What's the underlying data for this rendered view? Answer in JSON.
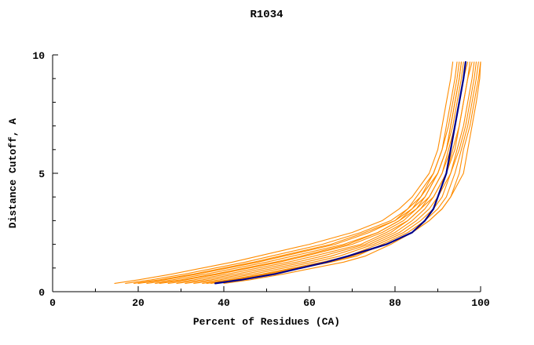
{
  "chart_data": {
    "type": "line",
    "title": "R1034",
    "xlabel": "Percent of Residues (CA)",
    "ylabel": "Distance Cutoff, A",
    "xlim": [
      0,
      100
    ],
    "ylim": [
      0,
      10
    ],
    "xticks": [
      0,
      20,
      40,
      60,
      80,
      100
    ],
    "yticks": [
      0,
      5,
      10
    ],
    "y_minor_ticks": [
      1,
      2,
      3,
      4,
      6,
      7,
      8,
      9
    ],
    "grid": false,
    "legend": "none",
    "colors": {
      "model": "#ff8c00",
      "highlight": "#00008b",
      "axis": "#000000",
      "background": "#ffffff"
    },
    "cutoffs": [
      0.35,
      0.5,
      0.75,
      1.0,
      1.25,
      1.5,
      2.0,
      2.5,
      3.0,
      3.5,
      4.0,
      5.0,
      6.0,
      7.0,
      8.0,
      9.0,
      9.7
    ],
    "series": [
      {
        "role": "model",
        "percents": [
          14.5,
          20,
          28,
          35,
          42,
          48,
          60,
          70,
          77,
          81,
          84,
          88,
          90,
          91,
          92,
          93,
          93.5
        ]
      },
      {
        "role": "model",
        "percents": [
          17,
          23,
          31,
          38,
          45,
          51,
          63,
          72,
          79,
          83,
          85,
          89,
          91,
          92,
          93,
          94,
          94.5
        ]
      },
      {
        "role": "model",
        "percents": [
          19,
          25,
          33,
          40,
          47,
          53,
          65,
          73,
          80,
          83,
          86,
          90,
          92,
          93,
          94,
          95,
          95.5
        ]
      },
      {
        "role": "model",
        "percents": [
          20,
          26,
          34,
          41,
          48,
          54,
          66,
          74,
          80,
          84,
          86,
          89,
          91,
          92.5,
          93.5,
          94.5,
          95
        ]
      },
      {
        "role": "model",
        "percents": [
          22,
          28,
          36,
          43,
          50,
          56,
          68,
          76,
          81,
          84,
          87,
          90,
          92,
          93,
          94,
          95,
          95.5
        ]
      },
      {
        "role": "model",
        "percents": [
          24,
          30,
          38,
          45,
          52,
          58,
          69,
          76,
          81,
          85,
          87,
          90,
          92,
          93.5,
          94.5,
          95.5,
          96
        ]
      },
      {
        "role": "model",
        "percents": [
          25,
          31,
          39,
          46,
          53,
          59,
          70,
          77,
          82,
          85,
          88,
          91,
          92.5,
          94,
          95,
          96,
          96.5
        ]
      },
      {
        "role": "model",
        "percents": [
          27,
          33,
          41,
          48,
          55,
          61,
          72,
          78,
          83,
          86,
          88,
          91,
          93,
          94,
          95,
          96,
          97
        ]
      },
      {
        "role": "model",
        "percents": [
          29,
          35,
          43,
          50,
          57,
          63,
          73,
          79,
          83,
          86,
          89,
          92,
          93.5,
          95,
          96,
          97,
          97.5
        ]
      },
      {
        "role": "model",
        "percents": [
          31,
          37,
          45,
          52,
          59,
          65,
          74,
          80,
          84,
          87,
          89,
          92,
          94,
          95,
          96,
          97,
          98
        ]
      },
      {
        "role": "model",
        "percents": [
          33,
          39,
          47,
          54,
          61,
          67,
          75,
          81,
          85,
          88,
          90,
          93,
          94.5,
          96,
          97,
          98,
          98.5
        ]
      },
      {
        "role": "model",
        "percents": [
          35,
          41,
          49,
          56,
          63,
          69,
          76,
          82,
          86,
          89,
          91,
          93,
          95,
          96.5,
          97.5,
          98.5,
          99
        ]
      },
      {
        "role": "model",
        "percents": [
          36,
          42,
          50,
          57,
          64,
          70,
          78,
          84,
          88,
          91,
          93,
          96,
          97,
          98,
          99,
          99.8,
          100
        ]
      },
      {
        "role": "model",
        "percents": [
          37,
          43,
          51,
          58,
          65,
          71,
          77,
          83,
          87,
          90,
          92,
          94,
          95.5,
          97,
          98,
          99,
          99.5
        ]
      },
      {
        "role": "model",
        "percents": [
          40,
          46,
          54,
          61,
          68,
          73,
          79,
          84,
          88,
          91,
          93,
          95,
          96,
          97.5,
          98.5,
          99.5,
          100
        ]
      },
      {
        "role": "highlight",
        "percents": [
          38,
          44,
          52,
          58,
          64,
          69,
          78,
          84,
          87,
          89,
          90,
          92,
          93,
          94,
          95,
          96,
          96.5
        ]
      }
    ]
  },
  "plot": {
    "title": "R1034",
    "xlabel": "Percent of Residues (CA)",
    "ylabel": "Distance Cutoff, A"
  }
}
